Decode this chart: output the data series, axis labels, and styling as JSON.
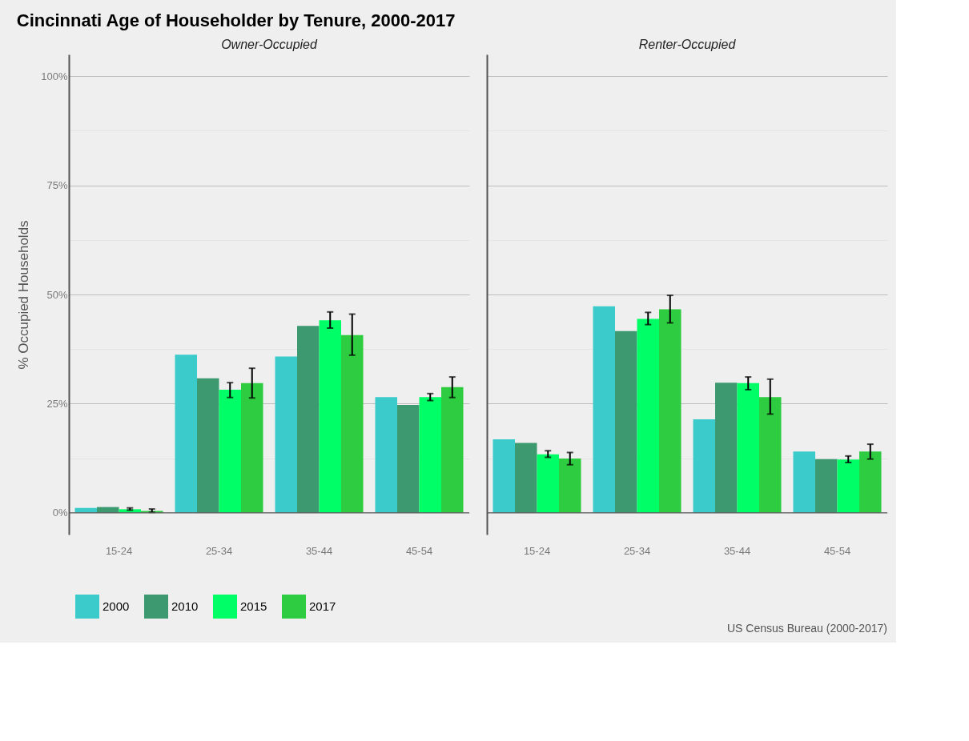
{
  "chart_data": [
    {
      "type": "bar",
      "title": "Cincinnati Age of Householder by Tenure, 2000-2017",
      "subtitle": "Owner-Occupied",
      "ylabel": "% Occupied Households",
      "categories": [
        "15-24",
        "25-34",
        "35-44",
        "45-54"
      ],
      "series": [
        {
          "name": "2000",
          "color": "#3bcbcb",
          "values": [
            1.1,
            36.2,
            35.8,
            26.5
          ]
        },
        {
          "name": "2010",
          "color": "#3d9970",
          "values": [
            1.3,
            30.8,
            42.8,
            24.7
          ]
        },
        {
          "name": "2015",
          "color": "#00ff66",
          "values": [
            0.8,
            28.2,
            44.1,
            26.5
          ],
          "errors": [
            [
              0.6,
              1.1
            ],
            [
              26.4,
              29.8
            ],
            [
              42.3,
              46.0
            ],
            [
              25.7,
              27.3
            ]
          ]
        },
        {
          "name": "2017",
          "color": "#2ecc40",
          "values": [
            0.4,
            29.7,
            40.7,
            28.8
          ],
          "errors": [
            [
              0.1,
              0.85
            ],
            [
              26.3,
              33.1
            ],
            [
              36.1,
              45.5
            ],
            [
              26.4,
              31.1
            ]
          ]
        }
      ],
      "ylim": [
        -5,
        105
      ],
      "yticks": [
        {
          "value": 0,
          "label": "0%"
        },
        {
          "value": 12.5,
          "label": null
        },
        {
          "value": 25,
          "label": "25%"
        },
        {
          "value": 37.5,
          "label": null
        },
        {
          "value": 50,
          "label": "50%"
        },
        {
          "value": 62.5,
          "label": null
        },
        {
          "value": 75,
          "label": "75%"
        },
        {
          "value": 87.5,
          "label": null
        },
        {
          "value": 100,
          "label": "100%"
        }
      ],
      "grid": "y",
      "legend": "bottom left",
      "ref_lines": [
        {
          "axis": "y",
          "value": 0,
          "color": "#555555"
        }
      ]
    },
    {
      "type": "bar",
      "subtitle": "Renter-Occupied",
      "categories": [
        "15-24",
        "25-34",
        "35-44",
        "45-54"
      ],
      "series": [
        {
          "name": "2000",
          "color": "#3bcbcb",
          "values": [
            16.8,
            47.3,
            21.4,
            14.0
          ]
        },
        {
          "name": "2010",
          "color": "#3d9970",
          "values": [
            16.0,
            41.6,
            29.8,
            12.3
          ]
        },
        {
          "name": "2015",
          "color": "#00ff66",
          "values": [
            13.4,
            44.4,
            29.7,
            12.2
          ],
          "errors": [
            [
              12.7,
              14.2
            ],
            [
              43.1,
              45.9
            ],
            [
              28.2,
              31.1
            ],
            [
              11.5,
              13.0
            ]
          ]
        },
        {
          "name": "2017",
          "color": "#2ecc40",
          "values": [
            12.4,
            46.6,
            26.5,
            14.0
          ],
          "errors": [
            [
              11.0,
              13.8
            ],
            [
              43.5,
              49.8
            ],
            [
              22.6,
              30.6
            ],
            [
              12.3,
              15.7
            ]
          ]
        }
      ],
      "ylim": [
        -5,
        105
      ],
      "yticks": [
        {
          "value": 0,
          "label": null
        },
        {
          "value": 12.5,
          "label": null
        },
        {
          "value": 25,
          "label": null
        },
        {
          "value": 37.5,
          "label": null
        },
        {
          "value": 50,
          "label": null
        },
        {
          "value": 62.5,
          "label": null
        },
        {
          "value": 75,
          "label": null
        },
        {
          "value": 87.5,
          "label": null
        },
        {
          "value": 100,
          "label": null
        }
      ],
      "grid": "y",
      "tick_labels": "x",
      "ref_lines": [
        {
          "axis": "y",
          "value": 0,
          "color": "#555555"
        }
      ],
      "annotations": [
        "US Census Bureau (2000-2017)"
      ]
    }
  ]
}
